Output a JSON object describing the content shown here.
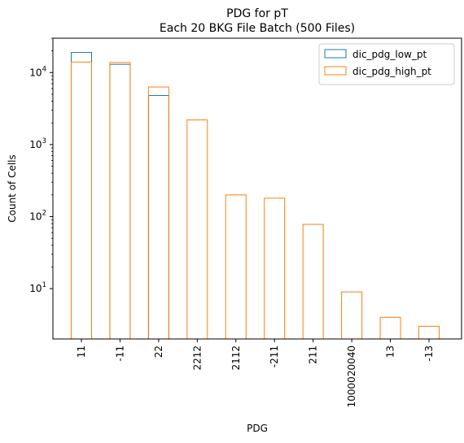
{
  "chart_data": {
    "type": "bar",
    "title": "PDG for pT",
    "subtitle": "Each 20 BKG File Batch (500 Files)",
    "xlabel": "PDG",
    "ylabel": "Count of Cells",
    "yscale": "log",
    "ylim": [
      2,
      30000
    ],
    "yticks": [
      {
        "value": 10,
        "base": "10",
        "exp": "1"
      },
      {
        "value": 100,
        "base": "10",
        "exp": "2"
      },
      {
        "value": 1000,
        "base": "10",
        "exp": "3"
      },
      {
        "value": 10000,
        "base": "10",
        "exp": "4"
      }
    ],
    "categories": [
      "11",
      "-11",
      "22",
      "2212",
      "2112",
      "-211",
      "211",
      "1000020040",
      "13",
      "-13"
    ],
    "series": [
      {
        "name": "dic_pdg_low_pt",
        "color": "#1f77b4",
        "values": [
          19000,
          13000,
          4800,
          null,
          null,
          null,
          null,
          null,
          null,
          null
        ]
      },
      {
        "name": "dic_pdg_high_pt",
        "color": "#ff7f0e",
        "values": [
          14000,
          13800,
          6300,
          2200,
          200,
          180,
          78,
          9,
          4,
          3
        ]
      }
    ],
    "grid": false,
    "legend_position": "top-right"
  }
}
